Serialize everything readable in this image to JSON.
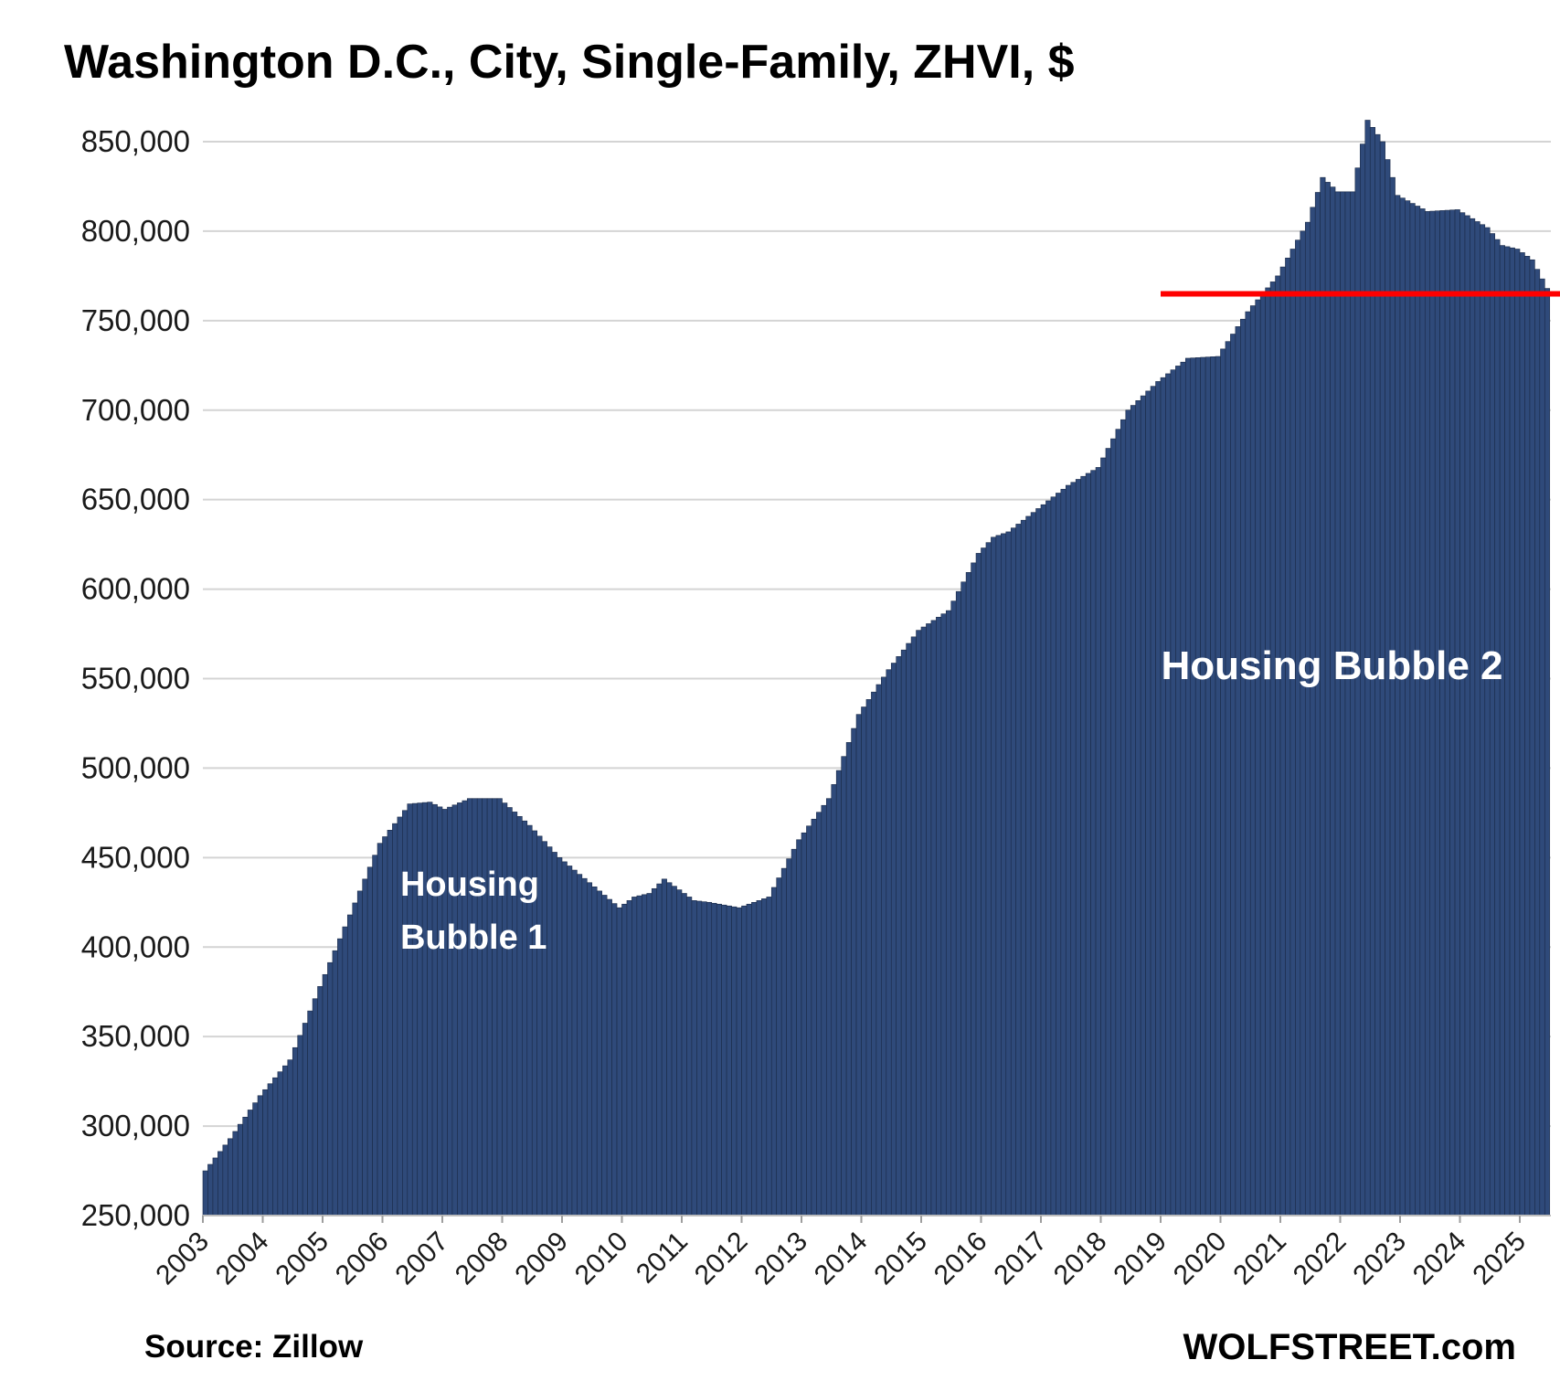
{
  "chart_data": {
    "type": "bar",
    "title": "Washington D.C., City, Single-Family, ZHVI, $",
    "xlabel": "",
    "ylabel": "",
    "ylim": [
      250000,
      850000
    ],
    "yticks": [
      "250,000",
      "300,000",
      "350,000",
      "400,000",
      "450,000",
      "500,000",
      "550,000",
      "600,000",
      "650,000",
      "700,000",
      "750,000",
      "800,000",
      "850,000"
    ],
    "year_labels": [
      "2003",
      "2004",
      "2005",
      "2006",
      "2007",
      "2008",
      "2009",
      "2010",
      "2011",
      "2012",
      "2013",
      "2014",
      "2015",
      "2016",
      "2017",
      "2018",
      "2019",
      "2020",
      "2021",
      "2022",
      "2023",
      "2024",
      "2025"
    ],
    "frequency": "monthly",
    "start": "2003-01",
    "end": "2025-06",
    "grid": true,
    "bar_color": "#2f4a7a",
    "reference_line": {
      "value": 765000,
      "from": "2019-01",
      "color": "#ff0000"
    },
    "annotations": [
      {
        "text": [
          "Housing",
          "Bubble 1"
        ],
        "near": "2006-02"
      },
      {
        "text": [
          "Housing Bubble 2"
        ],
        "near": "2018-12"
      }
    ],
    "anchor_values": [
      [
        "2003-01",
        275000
      ],
      [
        "2003-06",
        293000
      ],
      [
        "2003-12",
        317000
      ],
      [
        "2004-06",
        337000
      ],
      [
        "2004-12",
        378000
      ],
      [
        "2005-06",
        418000
      ],
      [
        "2005-12",
        458000
      ],
      [
        "2006-06",
        480000
      ],
      [
        "2006-10",
        481000
      ],
      [
        "2007-01",
        477000
      ],
      [
        "2007-06",
        483000
      ],
      [
        "2007-12",
        483000
      ],
      [
        "2008-06",
        468000
      ],
      [
        "2008-12",
        450000
      ],
      [
        "2009-06",
        436000
      ],
      [
        "2009-12",
        422000
      ],
      [
        "2010-03",
        428000
      ],
      [
        "2010-06",
        430000
      ],
      [
        "2010-09",
        438000
      ],
      [
        "2010-12",
        432000
      ],
      [
        "2011-03",
        426000
      ],
      [
        "2011-06",
        425000
      ],
      [
        "2011-12",
        422000
      ],
      [
        "2012-06",
        428000
      ],
      [
        "2012-12",
        460000
      ],
      [
        "2013-06",
        483000
      ],
      [
        "2013-12",
        530000
      ],
      [
        "2014-06",
        555000
      ],
      [
        "2014-12",
        577000
      ],
      [
        "2015-06",
        588000
      ],
      [
        "2015-12",
        620000
      ],
      [
        "2016-03",
        629000
      ],
      [
        "2016-06",
        632000
      ],
      [
        "2016-12",
        645000
      ],
      [
        "2017-06",
        658000
      ],
      [
        "2017-12",
        668000
      ],
      [
        "2018-06",
        700000
      ],
      [
        "2018-12",
        716000
      ],
      [
        "2019-06",
        729000
      ],
      [
        "2019-12",
        730000
      ],
      [
        "2020-06",
        755000
      ],
      [
        "2020-12",
        775000
      ],
      [
        "2021-06",
        805000
      ],
      [
        "2021-09",
        830000
      ],
      [
        "2021-12",
        822000
      ],
      [
        "2022-03",
        822000
      ],
      [
        "2022-06",
        862000
      ],
      [
        "2022-09",
        850000
      ],
      [
        "2022-12",
        820000
      ],
      [
        "2023-06",
        811000
      ],
      [
        "2023-12",
        812000
      ],
      [
        "2024-06",
        802000
      ],
      [
        "2024-09",
        792000
      ],
      [
        "2024-12",
        790000
      ],
      [
        "2025-03",
        784000
      ],
      [
        "2025-06",
        768000
      ]
    ]
  },
  "footer": {
    "source": "Source: Zillow",
    "brand": "WOLFSTREET.com"
  }
}
